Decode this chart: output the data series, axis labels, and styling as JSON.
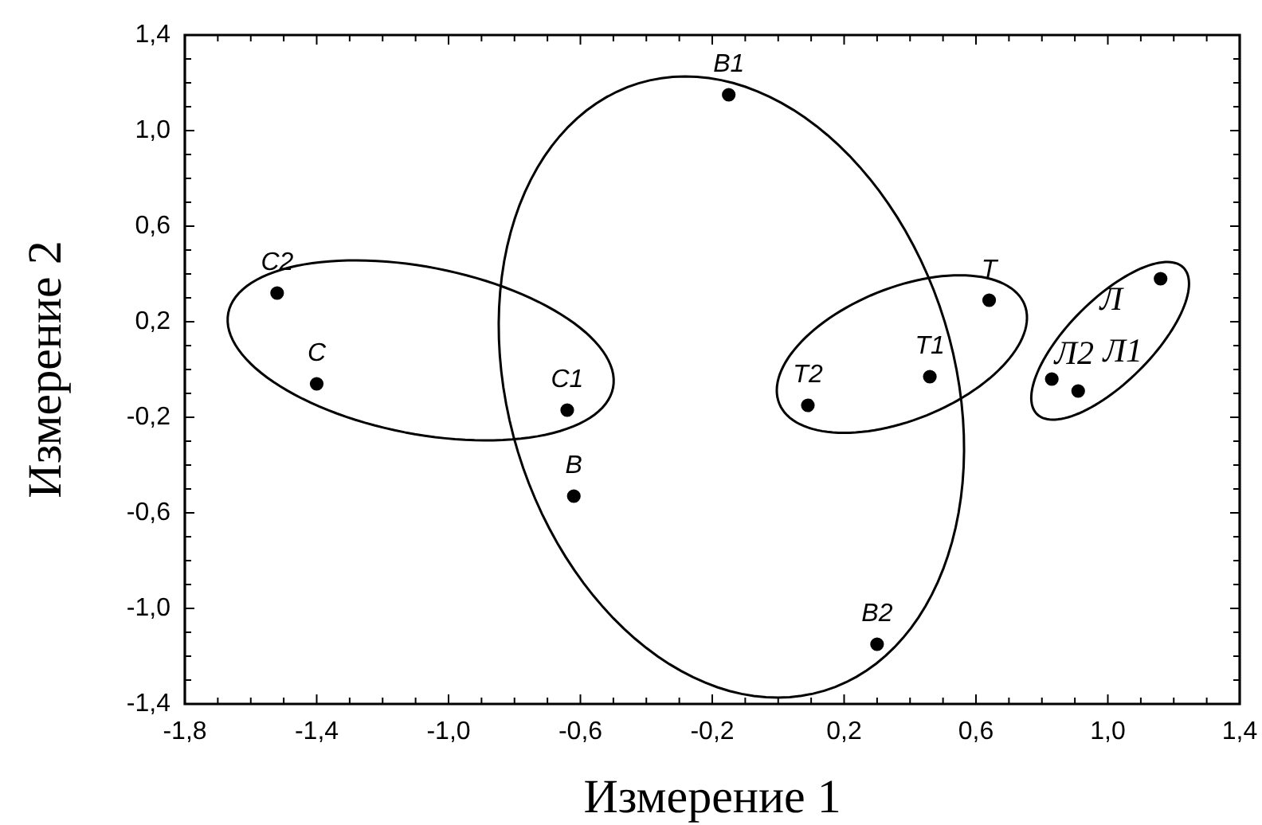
{
  "chart_data": {
    "type": "scatter",
    "xlabel": "Измерение 1",
    "ylabel": "Измерение 2",
    "color": "#000000",
    "marker": "circle",
    "x": [
      -1.52,
      -1.4,
      -0.64,
      -0.62,
      -0.15,
      0.3,
      0.09,
      0.46,
      0.64,
      0.83,
      0.91,
      1.16
    ],
    "values": [
      0.32,
      -0.06,
      -0.17,
      -0.53,
      1.15,
      -1.15,
      -0.15,
      -0.03,
      0.29,
      -0.04,
      -0.09,
      0.38
    ],
    "xlim": [
      -1.8,
      1.4
    ],
    "ylim": [
      -1.4,
      1.4
    ],
    "xticks": [
      {
        "value": -1.8,
        "label": "-1,8"
      },
      {
        "value": -1.7,
        "label": null
      },
      {
        "value": -1.6,
        "label": null
      },
      {
        "value": -1.5,
        "label": null
      },
      {
        "value": -1.4,
        "label": "-1,4"
      },
      {
        "value": -1.3,
        "label": null
      },
      {
        "value": -1.2,
        "label": null
      },
      {
        "value": -1.1,
        "label": null
      },
      {
        "value": -1.0,
        "label": "-1,0"
      },
      {
        "value": -0.9,
        "label": null
      },
      {
        "value": -0.8,
        "label": null
      },
      {
        "value": -0.7,
        "label": null
      },
      {
        "value": -0.6,
        "label": "-0,6"
      },
      {
        "value": -0.5,
        "label": null
      },
      {
        "value": -0.4,
        "label": null
      },
      {
        "value": -0.3,
        "label": null
      },
      {
        "value": -0.2,
        "label": "-0,2"
      },
      {
        "value": -0.1,
        "label": null
      },
      {
        "value": 0,
        "label": null
      },
      {
        "value": 0.1,
        "label": null
      },
      {
        "value": 0.2,
        "label": "0,2"
      },
      {
        "value": 0.3,
        "label": null
      },
      {
        "value": 0.4,
        "label": null
      },
      {
        "value": 0.5,
        "label": null
      },
      {
        "value": 0.6,
        "label": "0,6"
      },
      {
        "value": 0.7,
        "label": null
      },
      {
        "value": 0.8,
        "label": null
      },
      {
        "value": 0.9,
        "label": null
      },
      {
        "value": 1.0,
        "label": "1,0"
      },
      {
        "value": 1.1,
        "label": null
      },
      {
        "value": 1.2,
        "label": null
      },
      {
        "value": 1.3,
        "label": null
      },
      {
        "value": 1.4,
        "label": "1,4"
      }
    ],
    "yticks": [
      {
        "value": -1.4,
        "label": "-1,4"
      },
      {
        "value": -1.3,
        "label": null
      },
      {
        "value": -1.2,
        "label": null
      },
      {
        "value": -1.1,
        "label": null
      },
      {
        "value": -1.0,
        "label": "-1,0"
      },
      {
        "value": -0.9,
        "label": null
      },
      {
        "value": -0.8,
        "label": null
      },
      {
        "value": -0.7,
        "label": null
      },
      {
        "value": -0.6,
        "label": "-0,6"
      },
      {
        "value": -0.5,
        "label": null
      },
      {
        "value": -0.4,
        "label": null
      },
      {
        "value": -0.3,
        "label": null
      },
      {
        "value": -0.2,
        "label": "-0,2"
      },
      {
        "value": -0.1,
        "label": null
      },
      {
        "value": 0,
        "label": null
      },
      {
        "value": 0.1,
        "label": null
      },
      {
        "value": 0.2,
        "label": "0,2"
      },
      {
        "value": 0.3,
        "label": null
      },
      {
        "value": 0.4,
        "label": null
      },
      {
        "value": 0.5,
        "label": null
      },
      {
        "value": 0.6,
        "label": "0,6"
      },
      {
        "value": 0.7,
        "label": null
      },
      {
        "value": 0.8,
        "label": null
      },
      {
        "value": 0.9,
        "label": null
      },
      {
        "value": 1.0,
        "label": "1,0"
      },
      {
        "value": 1.1,
        "label": null
      },
      {
        "value": 1.2,
        "label": null
      },
      {
        "value": 1.3,
        "label": null
      },
      {
        "value": 1.4,
        "label": "1,4"
      }
    ],
    "annotations": [
      {
        "text": "С2",
        "x": -1.52,
        "y": 0.32
      },
      {
        "text": "С",
        "x": -1.4,
        "y": -0.06
      },
      {
        "text": "С1",
        "x": -0.64,
        "y": -0.17
      },
      {
        "text": "В",
        "x": -0.62,
        "y": -0.53
      },
      {
        "text": "В1",
        "x": -0.15,
        "y": 1.15
      },
      {
        "text": "В2",
        "x": 0.3,
        "y": -1.15
      },
      {
        "text": "Т2",
        "x": 0.09,
        "y": -0.15
      },
      {
        "text": "Т1",
        "x": 0.46,
        "y": -0.03
      },
      {
        "text": "Т",
        "x": 0.64,
        "y": 0.29
      },
      {
        "text": "Л2",
        "x": 0.83,
        "y": -0.04
      },
      {
        "text": "Л1",
        "x": 0.91,
        "y": -0.09
      },
      {
        "text": "Л",
        "x": 1.16,
        "y": 0.38
      }
    ]
  }
}
